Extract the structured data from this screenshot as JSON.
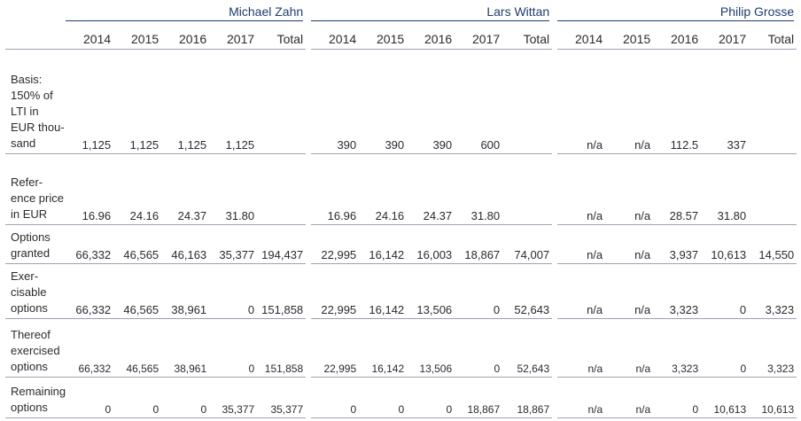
{
  "persons": [
    "Michael Zahn",
    "Lars Wittan",
    "Philip Grosse"
  ],
  "columns": [
    "2014",
    "2015",
    "2016",
    "2017",
    "Total"
  ],
  "rows": [
    {
      "label": "Basis: 150% of LTI in EUR thou- sand",
      "values": [
        [
          "1,125",
          "1,125",
          "1,125",
          "1,125",
          ""
        ],
        [
          "390",
          "390",
          "390",
          "600",
          ""
        ],
        [
          "n/a",
          "n/a",
          "112.5",
          "337",
          ""
        ]
      ]
    },
    {
      "label": "Refer- ence price in EUR",
      "values": [
        [
          "16.96",
          "24.16",
          "24.37",
          "31.80",
          ""
        ],
        [
          "16.96",
          "24.16",
          "24.37",
          "31.80",
          ""
        ],
        [
          "n/a",
          "n/a",
          "28.57",
          "31.80",
          ""
        ]
      ]
    },
    {
      "label": "Options granted",
      "values": [
        [
          "66,332",
          "46,565",
          "46,163",
          "35,377",
          "194,437"
        ],
        [
          "22,995",
          "16,142",
          "16,003",
          "18,867",
          "74,007"
        ],
        [
          "n/a",
          "n/a",
          "3,937",
          "10,613",
          "14,550"
        ]
      ]
    },
    {
      "label": "Exer- cisable options",
      "values": [
        [
          "66,332",
          "46,565",
          "38,961",
          "0",
          "151,858"
        ],
        [
          "22,995",
          "16,142",
          "13,506",
          "0",
          "52,643"
        ],
        [
          "n/a",
          "n/a",
          "3,323",
          "0",
          "3,323"
        ]
      ]
    },
    {
      "label": "Thereof exercised options",
      "values": [
        [
          "66,332",
          "46,565",
          "38,961",
          "0",
          "151,858"
        ],
        [
          "22,995",
          "16,142",
          "13,506",
          "0",
          "52,643"
        ],
        [
          "n/a",
          "n/a",
          "3,323",
          "0",
          "3,323"
        ]
      ]
    },
    {
      "label": "Remaining options",
      "values": [
        [
          "0",
          "0",
          "0",
          "35,377",
          "35,377"
        ],
        [
          "0",
          "0",
          "0",
          "18,867",
          "18,867"
        ],
        [
          "n/a",
          "n/a",
          "0",
          "10,613",
          "10,613"
        ]
      ]
    }
  ]
}
